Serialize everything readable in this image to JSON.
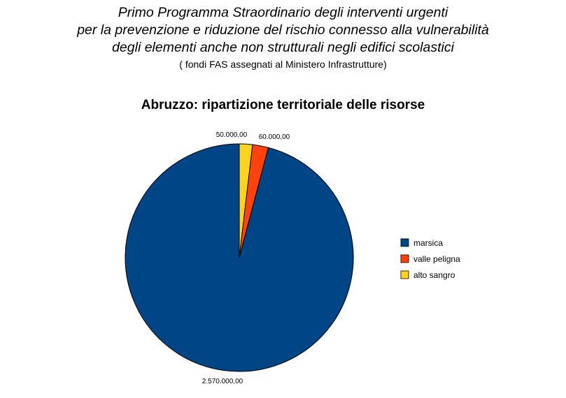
{
  "heading": {
    "line1": "Primo Programma Straordinario degli interventi urgenti",
    "line2": "per la prevenzione e riduzione del rischio connesso alla vulnerabilità",
    "line3": "degli elementi anche non strutturali negli edifici scolastici",
    "subtitle": "( fondi FAS assegnati al Ministero Infrastrutture)"
  },
  "chart_data": {
    "type": "pie",
    "title": "Abruzzo: ripartizione territoriale delle risorse",
    "start": "12 o'clock",
    "direction": "clockwise",
    "legend_position": "right",
    "slices": [
      {
        "label": "alto sangro",
        "value": 50000,
        "display": "50.000,00",
        "color": "#FFD320"
      },
      {
        "label": "valle peligna",
        "value": 60000,
        "display": "60.000,00",
        "color": "#FF420E"
      },
      {
        "label": "marsica",
        "value": 2570000,
        "display": "2.570.000,00",
        "color": "#004586"
      }
    ],
    "legend": [
      {
        "label": "marsica",
        "color": "#004586"
      },
      {
        "label": "valle peligna",
        "color": "#FF420E"
      },
      {
        "label": "alto sangro",
        "color": "#FFD320"
      }
    ]
  }
}
